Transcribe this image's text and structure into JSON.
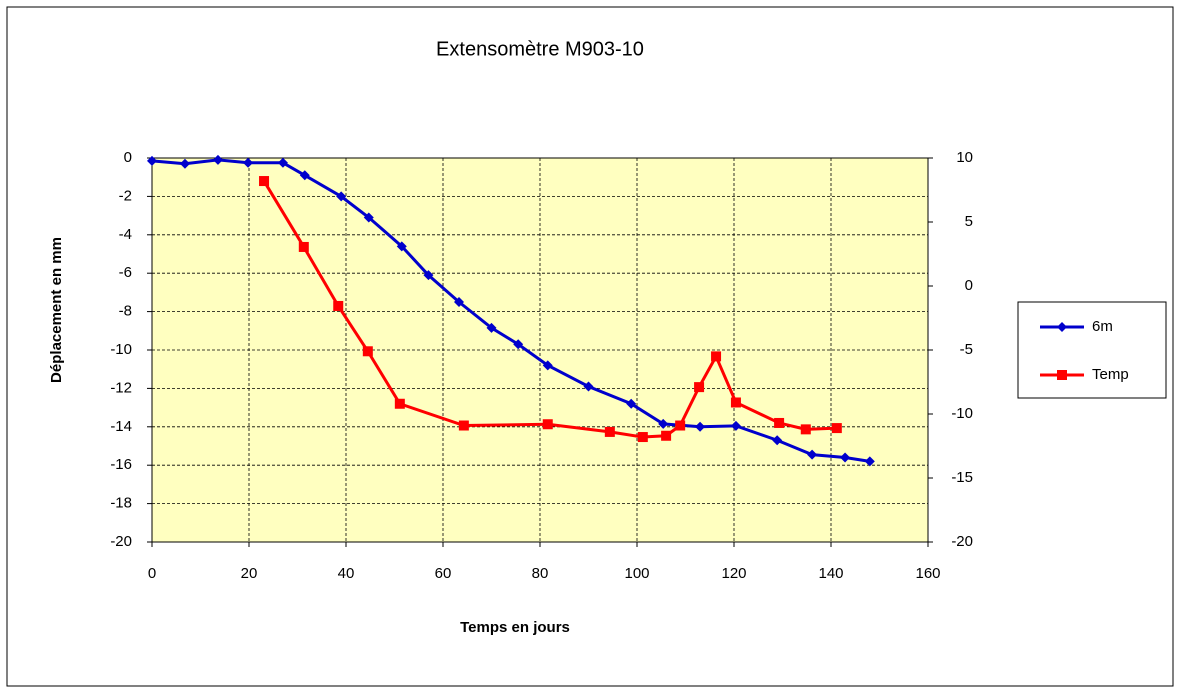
{
  "chart_data": {
    "type": "line",
    "title": "Extensomètre M903-10",
    "x_label": "Temps en jours",
    "y_label": "Déplacement en mm",
    "xlim": [
      0,
      160
    ],
    "xticks": [
      0,
      20,
      40,
      60,
      80,
      100,
      120,
      140,
      160
    ],
    "ylim": [
      -20,
      0
    ],
    "yticks": [
      0,
      -2,
      -4,
      -6,
      -8,
      -10,
      -12,
      -14,
      -16,
      -18,
      -20
    ],
    "y2lim": [
      -20,
      10
    ],
    "y2ticks": [
      10,
      5,
      0,
      -5,
      -10,
      -15,
      -20
    ],
    "grid": true,
    "legend": "right",
    "series": [
      {
        "name": "6m",
        "color": "#0000cc",
        "marker": "diamond",
        "x": [
          0,
          6.8,
          13.6,
          19.8,
          27,
          31.5,
          39,
          44.7,
          51.5,
          57,
          63.3,
          70,
          75.5,
          81.6,
          90,
          98.8,
          105.4,
          113,
          120.4,
          128.9,
          136.1,
          142.9,
          148
        ],
        "values": [
          -0.15,
          -0.3,
          -0.1,
          -0.25,
          -0.25,
          -0.9,
          -2.0,
          -3.1,
          -4.6,
          -6.1,
          -7.5,
          -8.85,
          -9.7,
          -10.8,
          -11.9,
          -12.8,
          -13.85,
          -14.0,
          -13.95,
          -14.7,
          -15.45,
          -15.6,
          -15.8
        ]
      },
      {
        "name": "Temp",
        "color": "#ff0000",
        "marker": "square",
        "axis": "y2",
        "x": [
          23.1,
          31.3,
          38.4,
          44.5,
          51.1,
          64.3,
          81.6,
          94.4,
          101.2,
          106,
          108.9,
          112.8,
          116.3,
          120.4,
          129.3,
          134.8,
          141.2
        ],
        "values": [
          8.2,
          3.05,
          -1.56,
          -5.1,
          -9.2,
          -10.9,
          -10.8,
          -11.4,
          -11.8,
          -11.7,
          -10.9,
          -7.9,
          -5.5,
          -9.1,
          -10.7,
          -11.2,
          -11.1
        ]
      }
    ]
  }
}
